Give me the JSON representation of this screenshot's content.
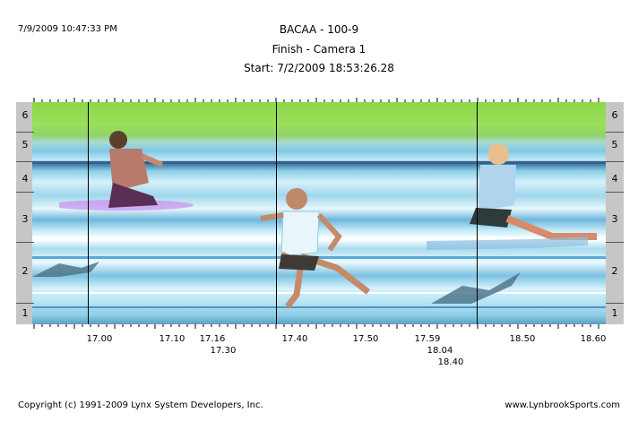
{
  "header": {
    "timestamp": "7/9/2009 10:47:33 PM",
    "title": "BACAA - 100-9",
    "subtitle": "Finish - Camera 1",
    "start": "Start: 7/2/2009 18:53:26.28"
  },
  "lanes": [
    "6",
    "5",
    "4",
    "3",
    "2",
    "1"
  ],
  "time_labels": [
    {
      "text": "17.00"
    },
    {
      "text": "17.10"
    },
    {
      "text": "17.16"
    },
    {
      "text": "17.30"
    },
    {
      "text": "17.40"
    },
    {
      "text": "17.50"
    },
    {
      "text": "17.59"
    },
    {
      "text": "18.04"
    },
    {
      "text": "18.40"
    },
    {
      "text": "18.50"
    },
    {
      "text": "18.60"
    }
  ],
  "footer": {
    "copyright": "Copyright (c) 1991-2009 Lynx System Developers, Inc.",
    "site": "www.LynbrookSports.com"
  },
  "colors": {
    "track_green": "#8bd84a",
    "lane_panel": "#c6c6c6",
    "time_line": "#000000"
  }
}
